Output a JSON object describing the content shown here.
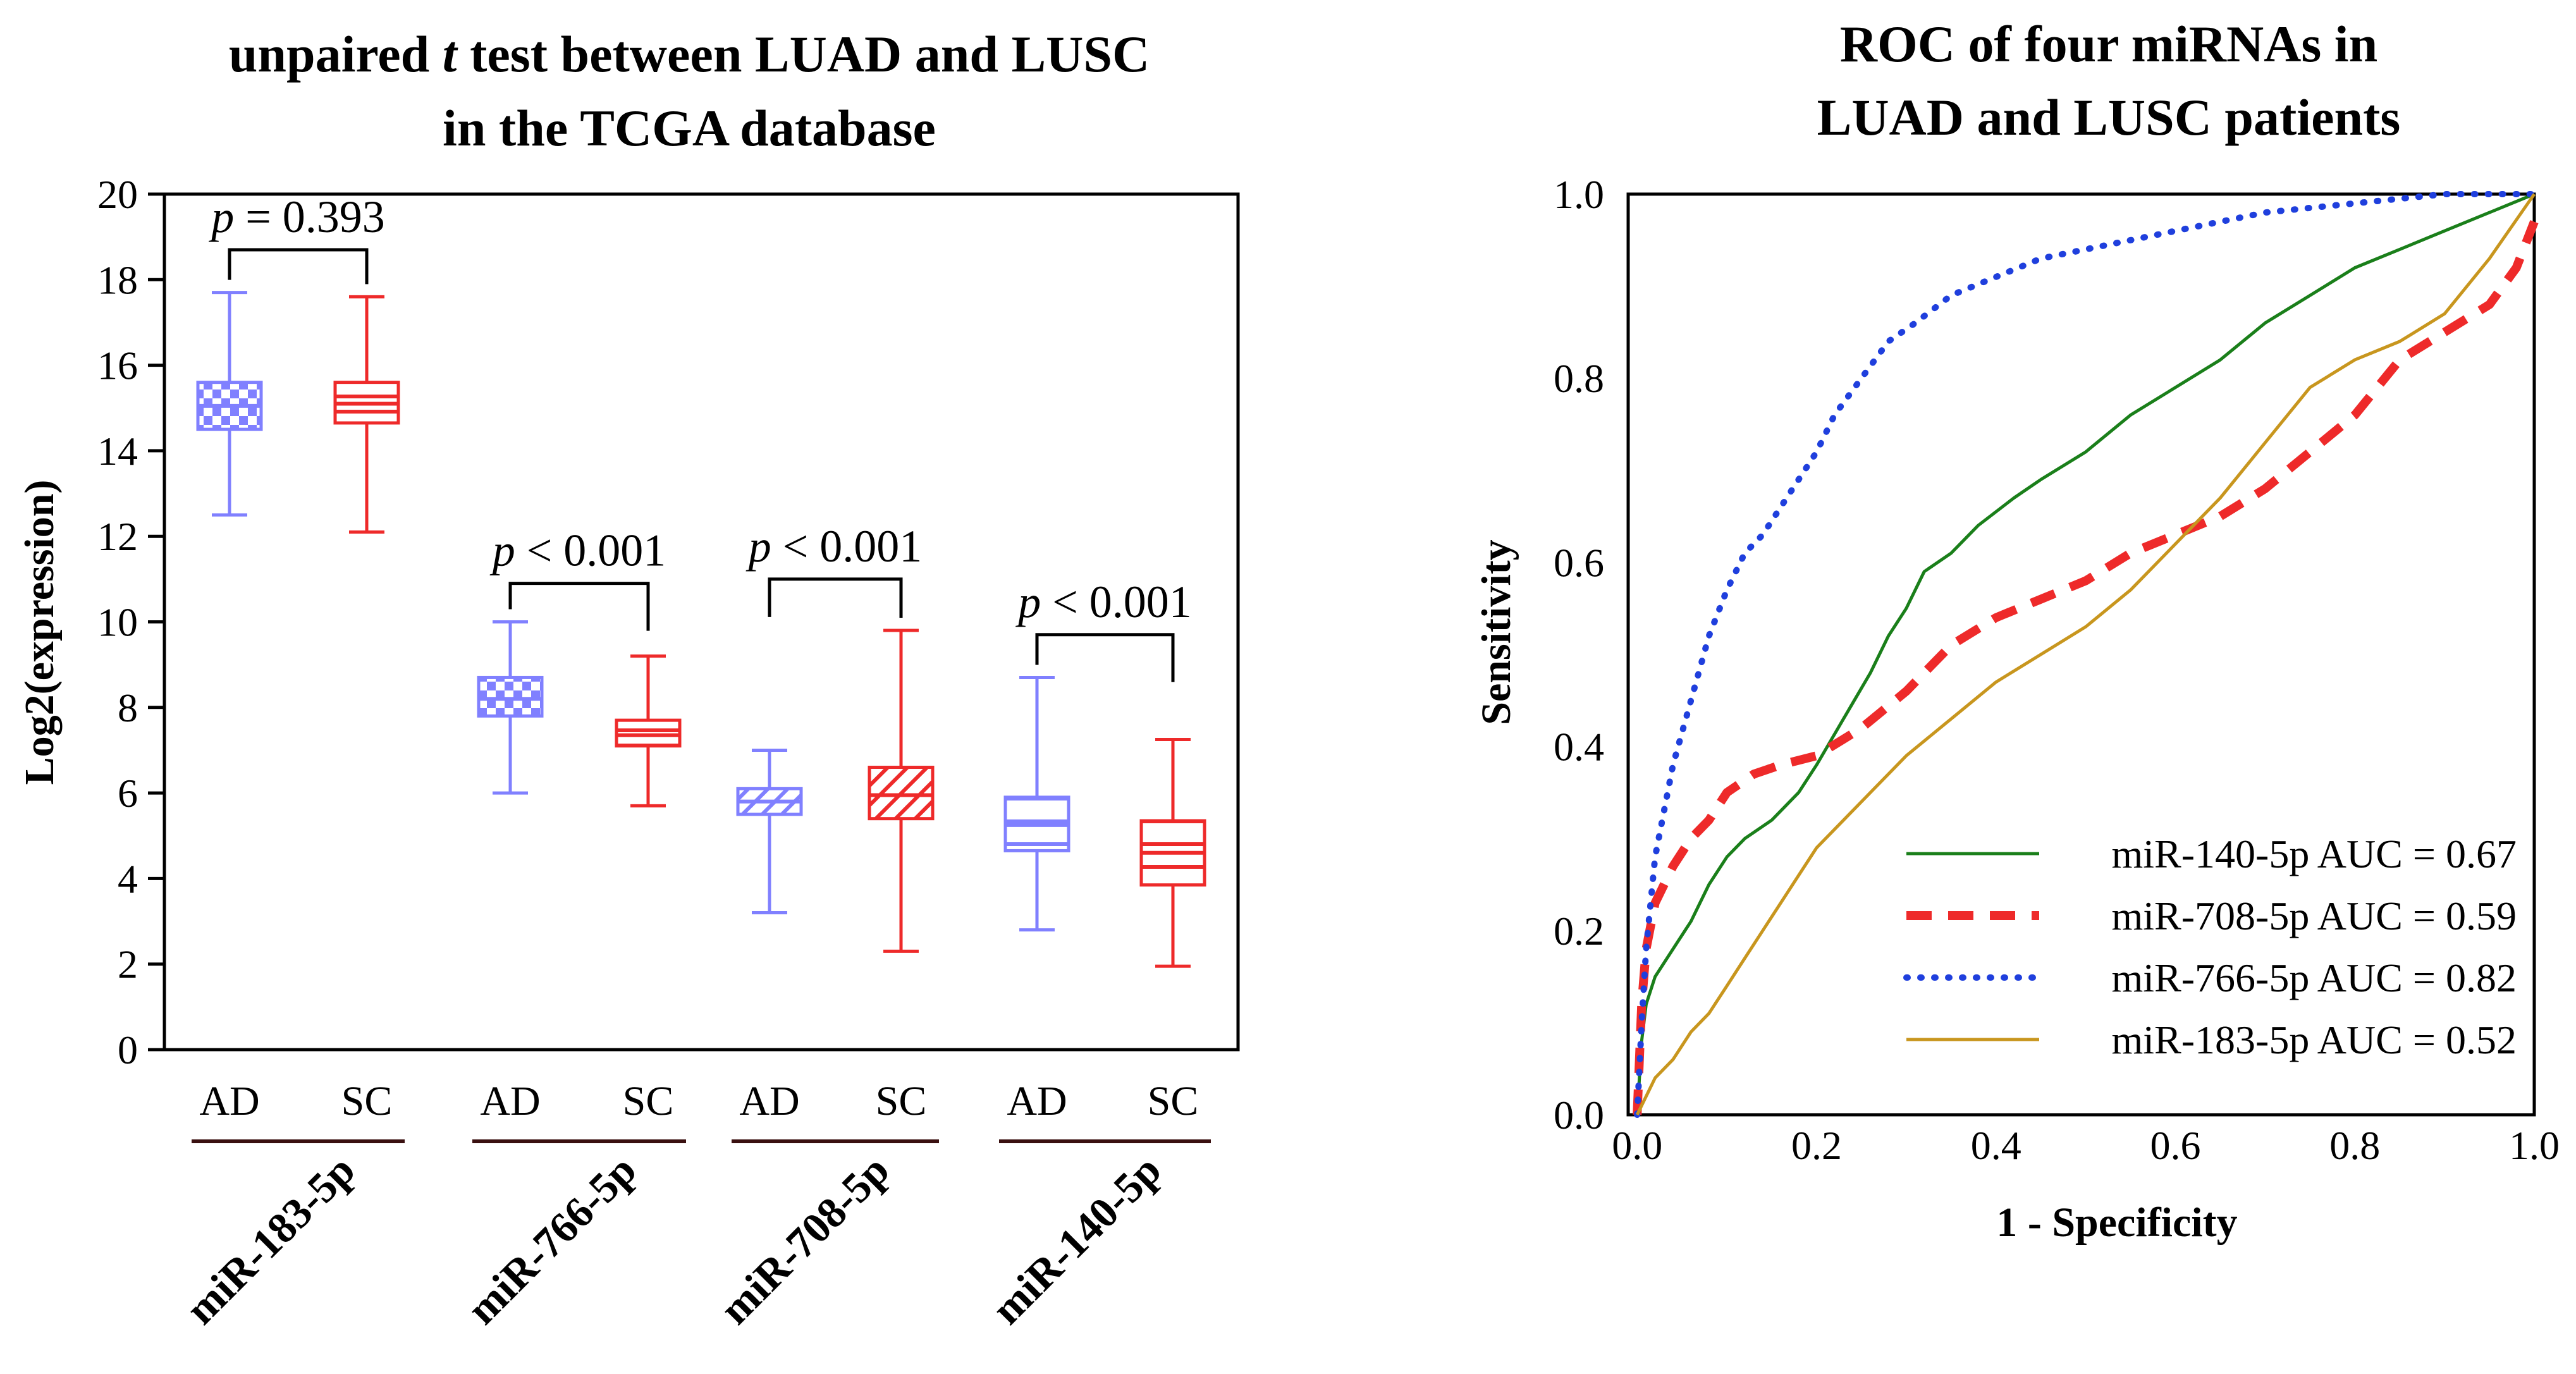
{
  "colors": {
    "AD": "#8080ff",
    "SC": "#ee2a2a",
    "axis": "#000000",
    "bracket": "#000000",
    "group_underline": "#3a1010"
  },
  "chart_data": [
    {
      "type": "box",
      "title_line1_pre": "unpaired ",
      "title_line1_italic": "t",
      "title_line1_post": " test between LUAD and LUSC",
      "title_line2": "in the TCGA database",
      "ylabel": "Log2(expression)",
      "ylim": [
        0,
        20
      ],
      "yticks": [
        0,
        2,
        4,
        6,
        8,
        10,
        12,
        14,
        16,
        18,
        20
      ],
      "ytick_labels": [
        "0",
        "2",
        "4",
        "6",
        "8",
        "10",
        "12",
        "14",
        "16",
        "18",
        "20"
      ],
      "groups": [
        {
          "mirna": "miR-183-5p",
          "p_letter": "p",
          "p_text": "= 0.393",
          "bracket_y": 18.7,
          "boxes": [
            {
              "label": "AD",
              "min": 12.5,
              "q1": 14.5,
              "median": 15.05,
              "q3": 15.6,
              "max": 17.7,
              "pattern": "check"
            },
            {
              "label": "SC",
              "min": 12.1,
              "q1": 14.65,
              "median": 15.1,
              "q3": 15.6,
              "max": 17.6,
              "pattern": "hlines"
            }
          ]
        },
        {
          "mirna": "miR-766-5p",
          "p_letter": "p",
          "p_text": "< 0.001",
          "bracket_y": 10.9,
          "boxes": [
            {
              "label": "AD",
              "min": 6.0,
              "q1": 7.8,
              "median": 8.2,
              "q3": 8.7,
              "max": 10.0,
              "pattern": "check"
            },
            {
              "label": "SC",
              "min": 5.7,
              "q1": 7.1,
              "median": 7.35,
              "q3": 7.7,
              "max": 9.2,
              "pattern": "hlines"
            }
          ]
        },
        {
          "mirna": "miR-708-5p",
          "p_letter": "p",
          "p_text": "< 0.001",
          "bracket_y": 11.0,
          "boxes": [
            {
              "label": "AD",
              "min": 3.2,
              "q1": 5.5,
              "median": 5.8,
              "q3": 6.1,
              "max": 7.0,
              "pattern": "diag"
            },
            {
              "label": "SC",
              "min": 2.3,
              "q1": 5.4,
              "median": 5.95,
              "q3": 6.6,
              "max": 9.8,
              "pattern": "diag"
            }
          ]
        },
        {
          "mirna": "miR-140-5p",
          "p_letter": "p",
          "p_text": "< 0.001",
          "bracket_y": 9.7,
          "boxes": [
            {
              "label": "AD",
              "min": 2.8,
              "q1": 4.65,
              "median": 5.25,
              "q3": 5.9,
              "max": 8.7,
              "pattern": "hlines"
            },
            {
              "label": "SC",
              "min": 1.95,
              "q1": 3.85,
              "median": 4.6,
              "q3": 5.35,
              "max": 7.25,
              "pattern": "hlines"
            }
          ]
        }
      ]
    },
    {
      "type": "line",
      "title_line1": "ROC of four miRNAs in",
      "title_line2": "LUAD and LUSC patients",
      "xlabel": "1 - Specificity",
      "ylabel": "Sensitivity",
      "xlim": [
        -0.01,
        1.0
      ],
      "ylim": [
        0,
        1.0
      ],
      "xticks": [
        0,
        0.2,
        0.4,
        0.6,
        0.8,
        1.0
      ],
      "xtick_labels": [
        "0.0",
        "0.2",
        "0.4",
        "0.6",
        "0.8",
        "1.0"
      ],
      "yticks": [
        0,
        0.2,
        0.4,
        0.6,
        0.8,
        1.0
      ],
      "ytick_labels": [
        "0.0",
        "0.2",
        "0.4",
        "0.6",
        "0.8",
        "1.0"
      ],
      "legend_position": "bottom-right",
      "series": [
        {
          "name": "miR-140-5p",
          "legend": "miR-140-5p AUC = 0.67",
          "auc": 0.67,
          "color": "#1a7f1a",
          "style": "solid",
          "x": [
            0,
            0.005,
            0.01,
            0.02,
            0.04,
            0.06,
            0.08,
            0.1,
            0.12,
            0.15,
            0.18,
            0.2,
            0.23,
            0.26,
            0.28,
            0.3,
            0.32,
            0.35,
            0.38,
            0.42,
            0.45,
            0.5,
            0.55,
            0.6,
            0.65,
            0.7,
            0.75,
            0.8,
            0.85,
            0.9,
            0.95,
            1.0
          ],
          "y": [
            0,
            0.08,
            0.12,
            0.15,
            0.18,
            0.21,
            0.25,
            0.28,
            0.3,
            0.32,
            0.35,
            0.38,
            0.43,
            0.48,
            0.52,
            0.55,
            0.59,
            0.61,
            0.64,
            0.67,
            0.69,
            0.72,
            0.76,
            0.79,
            0.82,
            0.86,
            0.89,
            0.92,
            0.94,
            0.96,
            0.98,
            1.0
          ]
        },
        {
          "name": "miR-708-5p",
          "legend": "miR-708-5p AUC = 0.59",
          "auc": 0.59,
          "color": "#ee2a2a",
          "style": "dashed",
          "x": [
            0,
            0.005,
            0.01,
            0.02,
            0.04,
            0.06,
            0.08,
            0.1,
            0.13,
            0.16,
            0.2,
            0.25,
            0.3,
            0.35,
            0.4,
            0.45,
            0.5,
            0.55,
            0.6,
            0.65,
            0.7,
            0.75,
            0.8,
            0.85,
            0.9,
            0.95,
            0.98,
            1.0
          ],
          "y": [
            0,
            0.12,
            0.18,
            0.23,
            0.27,
            0.3,
            0.32,
            0.35,
            0.37,
            0.38,
            0.39,
            0.42,
            0.46,
            0.51,
            0.54,
            0.56,
            0.58,
            0.61,
            0.63,
            0.65,
            0.68,
            0.72,
            0.76,
            0.82,
            0.85,
            0.88,
            0.92,
            0.97
          ]
        },
        {
          "name": "miR-766-5p",
          "legend": "miR-766-5p AUC = 0.82",
          "auc": 0.82,
          "color": "#1f3fdd",
          "style": "dotted",
          "x": [
            0,
            0.005,
            0.01,
            0.02,
            0.04,
            0.06,
            0.08,
            0.1,
            0.12,
            0.14,
            0.16,
            0.18,
            0.2,
            0.22,
            0.25,
            0.28,
            0.31,
            0.35,
            0.4,
            0.45,
            0.5,
            0.6,
            0.7,
            0.8,
            0.9,
            1.0
          ],
          "y": [
            0,
            0.1,
            0.18,
            0.28,
            0.38,
            0.45,
            0.52,
            0.57,
            0.61,
            0.63,
            0.66,
            0.69,
            0.72,
            0.76,
            0.8,
            0.84,
            0.86,
            0.89,
            0.91,
            0.93,
            0.94,
            0.96,
            0.98,
            0.99,
            1.0,
            1.0
          ]
        },
        {
          "name": "miR-183-5p",
          "legend": "miR-183-5p AUC = 0.52",
          "auc": 0.52,
          "color": "#c8961e",
          "style": "solid",
          "x": [
            0,
            0.01,
            0.02,
            0.04,
            0.06,
            0.08,
            0.1,
            0.12,
            0.14,
            0.16,
            0.18,
            0.2,
            0.23,
            0.26,
            0.3,
            0.35,
            0.4,
            0.45,
            0.5,
            0.55,
            0.6,
            0.65,
            0.7,
            0.75,
            0.8,
            0.85,
            0.9,
            0.95,
            1.0
          ],
          "y": [
            0,
            0.02,
            0.04,
            0.06,
            0.09,
            0.11,
            0.14,
            0.17,
            0.2,
            0.23,
            0.26,
            0.29,
            0.32,
            0.35,
            0.39,
            0.43,
            0.47,
            0.5,
            0.53,
            0.57,
            0.62,
            0.67,
            0.73,
            0.79,
            0.82,
            0.84,
            0.87,
            0.93,
            1.0
          ]
        }
      ]
    }
  ]
}
